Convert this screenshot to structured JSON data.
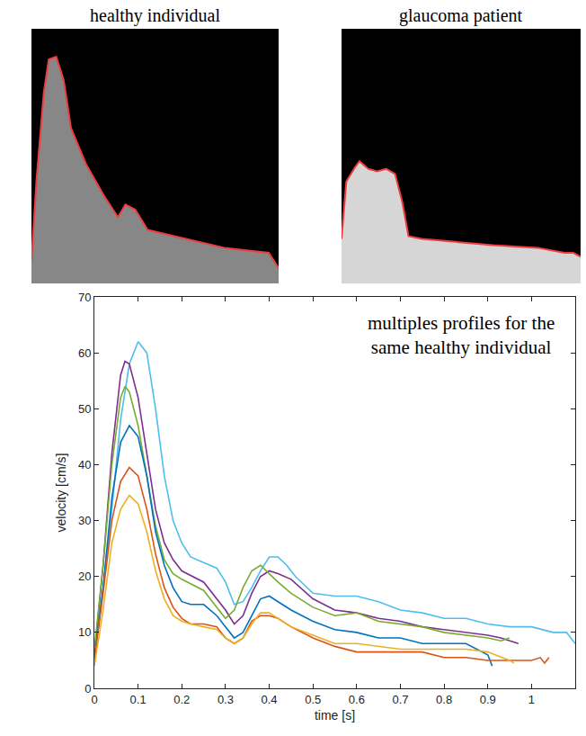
{
  "chart_data": [
    {
      "type": "area",
      "title": "healthy individual",
      "x": [
        0,
        0.02,
        0.05,
        0.07,
        0.1,
        0.13,
        0.16,
        0.22,
        0.29,
        0.35,
        0.38,
        0.42,
        0.47,
        0.6,
        0.78,
        0.96,
        1
      ],
      "values": [
        9,
        40,
        75,
        88,
        89,
        80,
        61,
        47,
        35,
        26,
        31,
        29,
        21,
        18,
        14,
        12,
        6
      ],
      "color": "#f03c3c",
      "xlim": [
        0,
        1
      ],
      "ylim": [
        0,
        100
      ],
      "tick_labels": false,
      "grid": false
    },
    {
      "type": "area",
      "title": "glaucoma patient",
      "x": [
        0,
        0.02,
        0.056,
        0.075,
        0.112,
        0.149,
        0.187,
        0.224,
        0.254,
        0.28,
        0.336,
        0.448,
        0.634,
        0.821,
        0.933,
        0.97,
        1
      ],
      "values": [
        17.5,
        40,
        45.6,
        48,
        45,
        44,
        45,
        43,
        32,
        18.6,
        17.5,
        16.5,
        15,
        14,
        12,
        12,
        10.5
      ],
      "color": "#f03c3c",
      "xlim": [
        0,
        1
      ],
      "ylim": [
        0,
        100
      ],
      "tick_labels": false,
      "grid": false
    },
    {
      "type": "line",
      "annotation": "multiples profiles for the\nsame healthy individual",
      "x_label": "time [s]",
      "y_label": "velocity [cm/s]",
      "xlim": [
        0,
        1.1
      ],
      "xticks": [
        0,
        0.1,
        0.2,
        0.3,
        0.4,
        0.5,
        0.6,
        0.7,
        0.8,
        0.9,
        1
      ],
      "ylim": [
        0,
        70
      ],
      "yticks": [
        0,
        10,
        20,
        30,
        40,
        50,
        60,
        70
      ],
      "grid": false,
      "series": [
        {
          "color": "#4dbeee",
          "x": [
            0,
            0.02,
            0.04,
            0.06,
            0.08,
            0.1,
            0.12,
            0.14,
            0.16,
            0.18,
            0.2,
            0.22,
            0.25,
            0.28,
            0.3,
            0.32,
            0.34,
            0.36,
            0.38,
            0.4,
            0.42,
            0.44,
            0.46,
            0.5,
            0.55,
            0.6,
            0.65,
            0.7,
            0.75,
            0.8,
            0.85,
            0.9,
            0.95,
            1.0,
            1.05,
            1.08,
            1.1
          ],
          "values": [
            7,
            18,
            32,
            48,
            58,
            62,
            60,
            50,
            38,
            30,
            26,
            23.5,
            22.5,
            21.5,
            19,
            15,
            15.5,
            18,
            21,
            23.5,
            23.5,
            22,
            20,
            17,
            16.5,
            16.5,
            15.5,
            14,
            13.5,
            12.5,
            12.5,
            11.5,
            11,
            11,
            10,
            10,
            8
          ]
        },
        {
          "color": "#7e2f8e",
          "x": [
            0,
            0.02,
            0.04,
            0.06,
            0.07,
            0.08,
            0.1,
            0.12,
            0.14,
            0.16,
            0.18,
            0.2,
            0.25,
            0.3,
            0.32,
            0.34,
            0.36,
            0.38,
            0.4,
            0.42,
            0.45,
            0.5,
            0.55,
            0.6,
            0.65,
            0.7,
            0.75,
            0.8,
            0.85,
            0.9,
            0.93,
            0.95,
            0.97
          ],
          "values": [
            6,
            22,
            42,
            56,
            58.5,
            58,
            52,
            42,
            32,
            26,
            23,
            21,
            19,
            14,
            11.5,
            13,
            17,
            20,
            21,
            20.5,
            19.5,
            16,
            14,
            13.5,
            12.5,
            12,
            11,
            10.5,
            10,
            9.5,
            9,
            8.5,
            8
          ]
        },
        {
          "color": "#77ac30",
          "x": [
            0,
            0.02,
            0.04,
            0.06,
            0.07,
            0.08,
            0.1,
            0.12,
            0.14,
            0.16,
            0.18,
            0.2,
            0.25,
            0.28,
            0.3,
            0.32,
            0.34,
            0.36,
            0.38,
            0.4,
            0.42,
            0.45,
            0.5,
            0.55,
            0.6,
            0.65,
            0.7,
            0.75,
            0.8,
            0.85,
            0.9,
            0.93,
            0.95
          ],
          "values": [
            7,
            22,
            40,
            52,
            54,
            53,
            47,
            38,
            29,
            23,
            20.5,
            19.5,
            17.5,
            14.5,
            12.5,
            14,
            18,
            21,
            22,
            20.5,
            19,
            17,
            14.5,
            13,
            13.5,
            12,
            11.5,
            11,
            10,
            9.5,
            9,
            8.5,
            9
          ]
        },
        {
          "color": "#0072bd",
          "x": [
            0,
            0.02,
            0.04,
            0.06,
            0.08,
            0.1,
            0.12,
            0.14,
            0.16,
            0.18,
            0.2,
            0.22,
            0.25,
            0.28,
            0.3,
            0.32,
            0.34,
            0.36,
            0.38,
            0.4,
            0.42,
            0.45,
            0.5,
            0.55,
            0.6,
            0.65,
            0.7,
            0.75,
            0.8,
            0.85,
            0.9,
            0.91
          ],
          "values": [
            5,
            18,
            34,
            44,
            47,
            45,
            38,
            28,
            22,
            18,
            15.5,
            15,
            15,
            13,
            11,
            9,
            10,
            13,
            16,
            16.5,
            15.5,
            14,
            12,
            10.5,
            10,
            9,
            9,
            8,
            8,
            8,
            6,
            4
          ]
        },
        {
          "color": "#d95319",
          "x": [
            0,
            0.02,
            0.04,
            0.06,
            0.08,
            0.1,
            0.12,
            0.14,
            0.16,
            0.18,
            0.2,
            0.22,
            0.25,
            0.28,
            0.3,
            0.32,
            0.34,
            0.36,
            0.38,
            0.4,
            0.42,
            0.45,
            0.5,
            0.55,
            0.6,
            0.65,
            0.7,
            0.75,
            0.8,
            0.85,
            0.9,
            0.95,
            1.0,
            1.02,
            1.03,
            1.04
          ],
          "values": [
            5,
            17,
            30,
            37,
            39.5,
            38,
            32,
            24,
            18,
            14.5,
            12.5,
            11.5,
            11.5,
            11,
            9,
            8,
            9,
            12,
            13,
            13,
            12.5,
            11,
            9,
            7.5,
            6.5,
            6.5,
            6.5,
            6.5,
            5.5,
            5.5,
            5,
            5,
            5,
            5.5,
            4.5,
            5.5
          ]
        },
        {
          "color": "#edb120",
          "x": [
            0,
            0.02,
            0.04,
            0.06,
            0.08,
            0.1,
            0.12,
            0.14,
            0.16,
            0.18,
            0.2,
            0.22,
            0.25,
            0.28,
            0.3,
            0.32,
            0.34,
            0.36,
            0.38,
            0.4,
            0.42,
            0.45,
            0.5,
            0.55,
            0.6,
            0.65,
            0.7,
            0.75,
            0.8,
            0.85,
            0.9,
            0.95,
            0.96
          ],
          "values": [
            4,
            14,
            26,
            32,
            34.5,
            33,
            28,
            21,
            16,
            13,
            12,
            11.5,
            11,
            10.5,
            9,
            8,
            9,
            11.5,
            13.5,
            13.5,
            12.5,
            11,
            9.5,
            8,
            8,
            7.5,
            7,
            7,
            7,
            7,
            6.5,
            5,
            4.5
          ]
        }
      ]
    }
  ]
}
